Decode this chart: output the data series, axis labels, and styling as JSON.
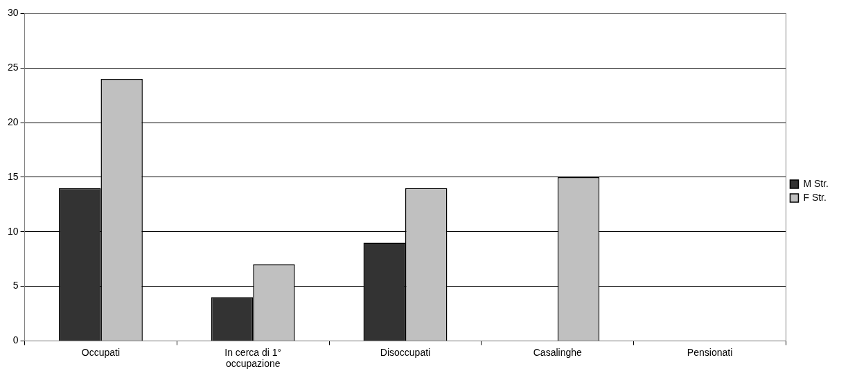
{
  "chart_data": {
    "type": "bar",
    "categories": [
      "Occupati",
      "In cerca di 1° occupazione",
      "Disoccupati",
      "Casalinghe",
      "Pensionati"
    ],
    "series": [
      {
        "name": "M Str.",
        "color": "#333333",
        "values": [
          14,
          4,
          9,
          0,
          0
        ]
      },
      {
        "name": "F Str.",
        "color": "#c0c0c0",
        "values": [
          24,
          7,
          14,
          15,
          0
        ]
      }
    ],
    "ylim": [
      0,
      30
    ],
    "yticks": [
      0,
      5,
      10,
      15,
      20,
      25,
      30
    ],
    "grid": "y",
    "legend": "right"
  }
}
